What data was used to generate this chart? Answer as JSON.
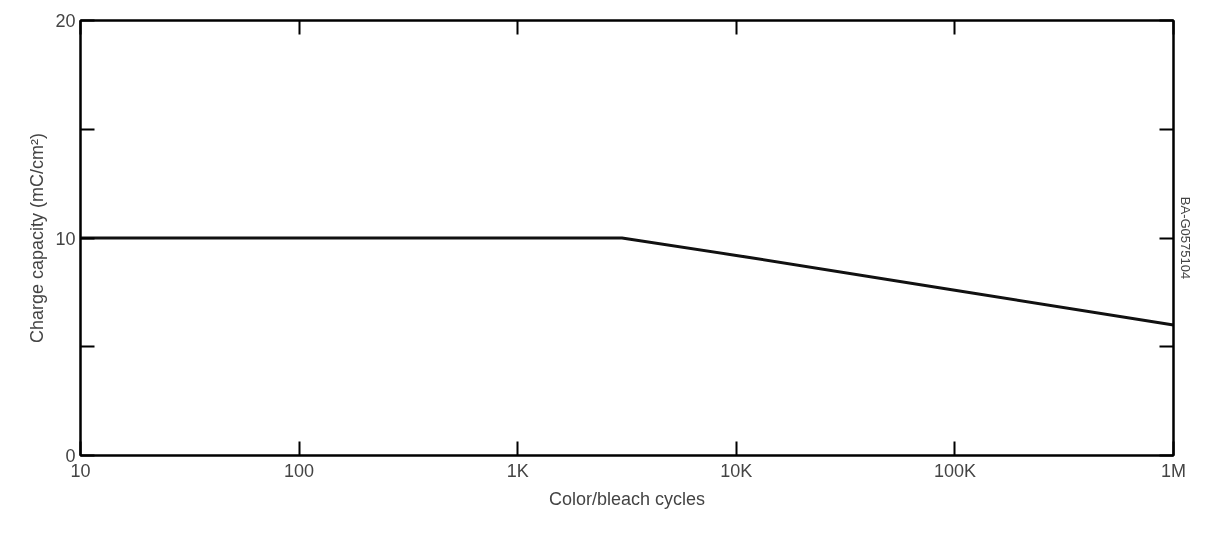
{
  "chart_data": {
    "type": "line",
    "xlabel": "Color/bleach cycles",
    "ylabel": "Charge capacity (mC/cm²)",
    "log": "x",
    "grid": false,
    "marker": "none",
    "line_style": "solid",
    "xlim": [
      10,
      1000000
    ],
    "ylim": [
      0,
      20
    ],
    "xticks": [
      10,
      100,
      {
        "value": 1000,
        "label": "1K"
      },
      {
        "value": 10000,
        "label": "10K"
      },
      {
        "value": 100000,
        "label": "100K"
      },
      {
        "value": 1000000,
        "label": "1M"
      }
    ],
    "yticks": [
      0,
      {
        "value": 5,
        "label": null
      },
      10,
      {
        "value": 15,
        "label": null
      },
      20
    ],
    "x": [
      10,
      3000,
      10000,
      100000,
      1000000
    ],
    "series": [
      {
        "color": "#111111",
        "values": [
          10,
          10,
          9.2,
          7.6,
          6.0
        ]
      }
    ],
    "annotations": [
      "BA-G0575104"
    ]
  }
}
